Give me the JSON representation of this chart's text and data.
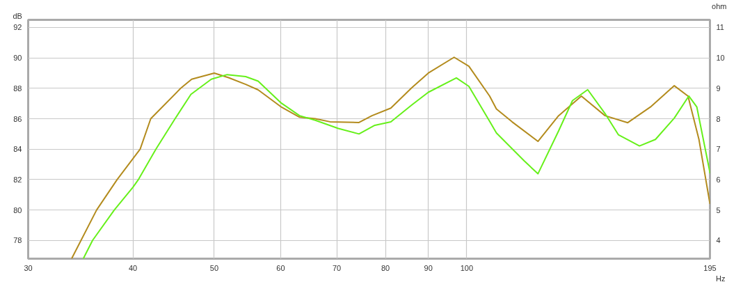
{
  "chart_data": {
    "type": "line",
    "xlabel": "Hz",
    "ylabel": "dB",
    "y2label": "ohm",
    "log": "x",
    "grid": true,
    "line_style": "solid",
    "marker": "none",
    "xlim": [
      30,
      195
    ],
    "xticks": [
      30,
      40,
      50,
      60,
      70,
      80,
      90,
      100,
      195
    ],
    "ylim": [
      76.8,
      92.5
    ],
    "yticks": [
      78,
      80,
      82,
      84,
      86,
      88,
      90,
      92
    ],
    "y2lim": [
      3.4,
      11.25
    ],
    "y2ticks": [
      4,
      5,
      6,
      7,
      8,
      9,
      10,
      11
    ],
    "series": [
      {
        "color": "#b38b1d",
        "x": [
          33.8,
          36.2,
          38.3,
          40.8,
          42.0,
          45.6,
          47.0,
          50.0,
          52.0,
          54.5,
          56.4,
          60.0,
          63.2,
          66.0,
          68.7,
          74.4,
          77.1,
          81.2,
          86.0,
          90.0,
          96.6,
          100.6,
          106.5,
          108.5,
          113.3,
          121.6,
          128.7,
          137.0,
          146.2,
          155.6,
          165.6,
          176.8,
          183.6,
          189.2,
          195.0
        ],
        "values": [
          76.8,
          80.0,
          82.0,
          84.0,
          86.0,
          88.0,
          88.6,
          89.0,
          88.7,
          88.26,
          87.9,
          86.8,
          86.1,
          86.0,
          85.8,
          85.75,
          86.2,
          86.7,
          88.04,
          89.0,
          90.04,
          89.45,
          87.49,
          86.64,
          85.79,
          84.51,
          86.2,
          87.49,
          86.2,
          85.74,
          86.77,
          88.17,
          87.49,
          84.64,
          80.4
        ]
      },
      {
        "color": "#66f01a",
        "x": [
          34.9,
          35.8,
          38.0,
          40.0,
          40.6,
          42.6,
          44.9,
          46.9,
          49.6,
          51.8,
          54.5,
          56.4,
          60.0,
          63.2,
          66.0,
          70.3,
          74.4,
          77.7,
          81.2,
          86.0,
          90.0,
          97.2,
          100.6,
          106.5,
          108.5,
          117.1,
          121.6,
          128.7,
          133.7,
          139.4,
          146.2,
          151.7,
          160.7,
          167.9,
          176.8,
          184.0,
          188.1,
          194.7,
          195.0
        ],
        "values": [
          76.8,
          78.0,
          80.0,
          81.5,
          82.0,
          84.0,
          86.0,
          87.6,
          88.6,
          88.9,
          88.77,
          88.47,
          87.06,
          86.2,
          85.9,
          85.36,
          85.0,
          85.57,
          85.79,
          86.9,
          87.74,
          88.68,
          88.13,
          85.83,
          85.06,
          83.23,
          82.38,
          85.2,
          87.19,
          87.91,
          86.34,
          84.94,
          84.21,
          84.64,
          86.04,
          87.49,
          86.77,
          82.64,
          82.4
        ]
      }
    ]
  }
}
